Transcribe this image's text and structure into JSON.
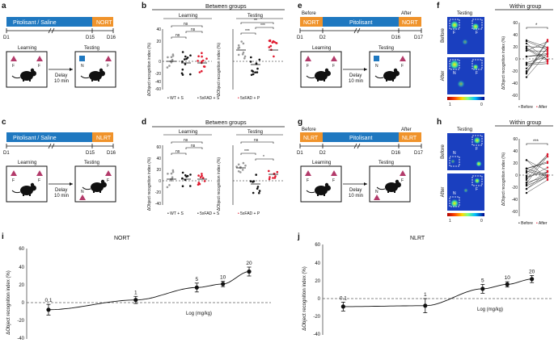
{
  "panels": {
    "a": {
      "letter": "a",
      "bar_main": "Pitolisant / Saline",
      "bar_task": "NORT",
      "days": [
        "D1",
        "D15",
        "D16"
      ],
      "learning": "Learning",
      "testing": "Testing",
      "delay": "Delay",
      "delay_time": "10 min",
      "obj_f": "F",
      "obj_n": "N"
    },
    "b": {
      "letter": "b",
      "title": "Between groups",
      "sub_left": "Learning",
      "sub_right": "Testing",
      "ylabel": "ΔObject recognition index (%)",
      "ticks": [
        "40",
        "20",
        "0",
        "-20",
        "-40",
        "-60"
      ],
      "sig": [
        "ns",
        "ns",
        "ns",
        "***",
        "***",
        "**"
      ],
      "legend": [
        "WT + S",
        "5xFAD + S",
        "5xFAD + P"
      ]
    },
    "c": {
      "letter": "c",
      "bar_main": "Pitolisant / Saline",
      "bar_task": "NLRT",
      "days": [
        "D1",
        "D15",
        "D16"
      ],
      "learning": "Learning",
      "testing": "Testing",
      "delay": "Delay",
      "delay_time": "10 min",
      "obj_f": "F",
      "obj_n": "N"
    },
    "d": {
      "letter": "d",
      "title": "Between groups",
      "sub_left": "Learning",
      "sub_right": "Testing",
      "ylabel": "ΔObject recognition index (%)",
      "ticks": [
        "60",
        "40",
        "20",
        "0",
        "-20",
        "-40"
      ],
      "sig": [
        "ns",
        "ns",
        "ns",
        "ns",
        "***",
        "*"
      ],
      "legend": [
        "WT + S",
        "5xFAD + S",
        "5xFAD + P"
      ]
    },
    "e": {
      "letter": "e",
      "before": "Before",
      "after": "After",
      "seg1": "NORT",
      "seg2": "Pitolisant",
      "seg3": "NORT",
      "days": [
        "D1",
        "D2",
        "D16",
        "D17"
      ],
      "learning": "Learning",
      "testing": "Testing",
      "delay": "Delay",
      "delay_time": "10 min",
      "obj_f": "F",
      "obj_n": "N"
    },
    "f": {
      "letter": "f",
      "testing": "Testing",
      "title": "Within group",
      "row_before": "Before",
      "row_after": "After",
      "ylabel": "ΔObject recognition index (%)",
      "ticks": [
        "60",
        "40",
        "20",
        "0",
        "-20",
        "-40",
        "-60"
      ],
      "sig": "*",
      "scale_max": "1",
      "scale_min": "0",
      "legend_before": "Before",
      "legend_after": "After",
      "map_labels": [
        "F",
        "F",
        "N",
        "F"
      ]
    },
    "g": {
      "letter": "g",
      "before": "Before",
      "after": "After",
      "seg1": "NLRT",
      "seg2": "Pitolisant",
      "seg3": "NLRT",
      "days": [
        "D1",
        "D2",
        "D16",
        "D17"
      ],
      "learning": "Learning",
      "testing": "Testing",
      "delay": "Delay",
      "delay_time": "10 min",
      "obj_f": "F",
      "obj_n": "N"
    },
    "h": {
      "letter": "h",
      "testing": "Testing",
      "title": "Within group",
      "row_before": "Before",
      "row_after": "After",
      "ylabel": "ΔObject recognition index (%)",
      "ticks": [
        "60",
        "40",
        "20",
        "0",
        "-20",
        "-40",
        "-60"
      ],
      "sig": "***",
      "scale_max": "1",
      "scale_min": "0",
      "legend_before": "Before",
      "legend_after": "After",
      "map_labels": [
        "N",
        "F",
        "N",
        "F"
      ]
    },
    "i": {
      "letter": "i",
      "title": "NORT",
      "ylabel": "ΔObject recognition index (%)",
      "xlabel": "Log (mg/kg)",
      "ticks": [
        "60",
        "40",
        "20",
        "0",
        "-20",
        "-40"
      ]
    },
    "j": {
      "letter": "j",
      "title": "NLRT",
      "ylabel": "ΔObject recognition index (%)",
      "xlabel": "Log (mg/kg)",
      "ticks": [
        "60",
        "40",
        "20",
        "0",
        "-20",
        "-40"
      ]
    }
  },
  "colors": {
    "blue": "#1f78c0",
    "orange": "#f0932b",
    "red": "#e0182d",
    "grey": "#9a9a9a",
    "marker": "#b33a6a",
    "heat_blue": "#1a3fbf"
  },
  "chart_data": [
    {
      "id": "i",
      "type": "scatter",
      "title": "NORT",
      "xlabel": "Log (mg/kg)",
      "ylabel": "ΔObject recognition index (%)",
      "ylim": [
        -40,
        60
      ],
      "series": [
        {
          "name": "dose-response",
          "points": [
            {
              "dose": "0.1",
              "x": -1.0,
              "y": -8,
              "err": 6
            },
            {
              "dose": "1",
              "x": 0.0,
              "y": 3,
              "err": 4
            },
            {
              "dose": "5",
              "x": 0.7,
              "y": 17,
              "err": 5
            },
            {
              "dose": "10",
              "x": 1.0,
              "y": 21,
              "err": 3
            },
            {
              "dose": "20",
              "x": 1.3,
              "y": 35,
              "err": 5
            }
          ]
        }
      ]
    },
    {
      "id": "j",
      "type": "scatter",
      "title": "NLRT",
      "xlabel": "Log (mg/kg)",
      "ylabel": "ΔObject recognition index (%)",
      "ylim": [
        -40,
        60
      ],
      "series": [
        {
          "name": "dose-response",
          "points": [
            {
              "dose": "0.1",
              "x": -1.0,
              "y": -9,
              "err": 5
            },
            {
              "dose": "1",
              "x": 0.0,
              "y": -8,
              "err": 8
            },
            {
              "dose": "5",
              "x": 0.7,
              "y": 11,
              "err": 5
            },
            {
              "dose": "10",
              "x": 1.0,
              "y": 16,
              "err": 3
            },
            {
              "dose": "20",
              "x": 1.3,
              "y": 22,
              "err": 4
            }
          ]
        }
      ]
    }
  ]
}
